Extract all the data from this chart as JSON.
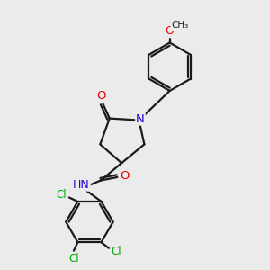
{
  "background_color": "#ebebeb",
  "bond_color": "#1a1a1a",
  "atom_colors": {
    "O": "#e60000",
    "N": "#2200cc",
    "Cl": "#00aa00",
    "C": "#1a1a1a",
    "H": "#1a1a1a"
  },
  "bond_width": 1.6,
  "figsize": [
    3.0,
    3.0
  ],
  "dpi": 100
}
